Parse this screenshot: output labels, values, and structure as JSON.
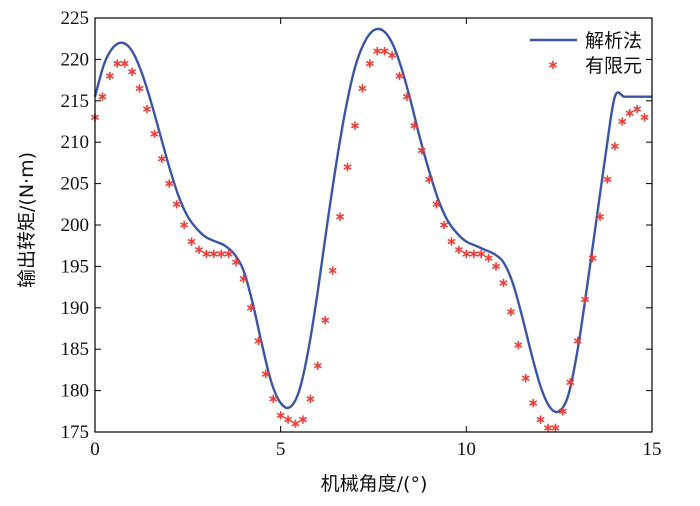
{
  "chart_data": {
    "type": "line",
    "title": "",
    "xlabel": "机械角度/(°)",
    "ylabel": "输出转矩/(N·m)",
    "xlim": [
      0,
      15
    ],
    "ylim": [
      175,
      225
    ],
    "xticks": [
      "0",
      "5",
      "10",
      "15"
    ],
    "yticks": [
      "175",
      "180",
      "185",
      "190",
      "195",
      "200",
      "205",
      "210",
      "215",
      "220",
      "225"
    ],
    "grid": false,
    "legend_position": "top-right",
    "series": [
      {
        "name": "解析法",
        "style": "line",
        "color": "#3a55a4",
        "x": [
          0,
          0.25,
          0.5,
          0.75,
          1.0,
          1.25,
          1.5,
          1.75,
          2.0,
          2.25,
          2.5,
          2.75,
          3.0,
          3.25,
          3.5,
          3.75,
          4.0,
          4.25,
          4.5,
          4.75,
          5.0,
          5.25,
          5.5,
          5.75,
          6.0,
          6.25,
          6.5,
          6.75,
          7.0,
          7.25,
          7.5,
          7.75,
          8.0,
          8.25,
          8.5,
          8.75,
          9.0,
          9.25,
          9.5,
          9.75,
          10.0,
          10.25,
          10.5,
          10.75,
          11.0,
          11.25,
          11.5,
          11.75,
          12.0,
          12.25,
          12.5,
          12.75,
          13.0,
          13.25,
          13.5,
          13.75,
          14.0,
          14.25,
          14.5,
          14.75,
          15.0
        ],
        "values": [
          215.5,
          219.5,
          221.5,
          222.0,
          221.0,
          218.5,
          215.0,
          211.0,
          207.0,
          203.5,
          201.0,
          199.5,
          198.5,
          198.0,
          197.5,
          196.5,
          194.5,
          190.5,
          185.5,
          181.0,
          178.5,
          178.0,
          180.0,
          185.0,
          192.0,
          200.0,
          207.5,
          214.0,
          219.0,
          222.0,
          223.5,
          223.5,
          222.0,
          219.0,
          215.0,
          210.5,
          206.5,
          203.0,
          200.5,
          199.0,
          198.0,
          197.5,
          197.0,
          196.5,
          195.5,
          193.0,
          189.0,
          184.5,
          180.5,
          178.0,
          177.5,
          179.5,
          185.0,
          192.5,
          200.5,
          208.5,
          215.5,
          215.5,
          215.5,
          215.5,
          215.5
        ]
      },
      {
        "name": "有限元",
        "style": "marker",
        "marker": "*",
        "color": "#e8413c",
        "x": [
          0,
          0.2,
          0.4,
          0.6,
          0.8,
          1.0,
          1.2,
          1.4,
          1.6,
          1.8,
          2.0,
          2.2,
          2.4,
          2.6,
          2.8,
          3.0,
          3.2,
          3.4,
          3.6,
          3.8,
          4.0,
          4.2,
          4.4,
          4.6,
          4.8,
          5.0,
          5.2,
          5.4,
          5.6,
          5.8,
          6.0,
          6.2,
          6.4,
          6.6,
          6.8,
          7.0,
          7.2,
          7.4,
          7.6,
          7.8,
          8.0,
          8.2,
          8.4,
          8.6,
          8.8,
          9.0,
          9.2,
          9.4,
          9.6,
          9.8,
          10.0,
          10.2,
          10.4,
          10.6,
          10.8,
          11.0,
          11.2,
          11.4,
          11.6,
          11.8,
          12.0,
          12.2,
          12.4,
          12.6,
          12.8,
          13.0,
          13.2,
          13.4,
          13.6,
          13.8,
          14.0,
          14.2,
          14.4,
          14.6,
          14.8
        ],
        "values": [
          213.0,
          215.5,
          218.0,
          219.5,
          219.5,
          218.5,
          216.5,
          214.0,
          211.0,
          208.0,
          205.0,
          202.5,
          200.0,
          198.0,
          197.0,
          196.5,
          196.5,
          196.5,
          196.5,
          195.5,
          193.5,
          190.0,
          186.0,
          182.0,
          179.0,
          177.0,
          176.5,
          176.0,
          176.5,
          179.0,
          183.0,
          188.5,
          194.5,
          201.0,
          207.0,
          212.0,
          216.5,
          219.5,
          221.0,
          221.0,
          220.5,
          218.0,
          215.5,
          212.0,
          209.0,
          205.5,
          202.5,
          200.0,
          198.0,
          197.0,
          196.5,
          196.5,
          196.5,
          196.0,
          195.0,
          193.0,
          189.5,
          185.5,
          181.5,
          178.5,
          176.5,
          175.5,
          175.5,
          177.5,
          181.0,
          186.0,
          191.0,
          196.0,
          201.0,
          205.5,
          209.5,
          212.5,
          213.5,
          214.0,
          213.0
        ]
      }
    ]
  }
}
